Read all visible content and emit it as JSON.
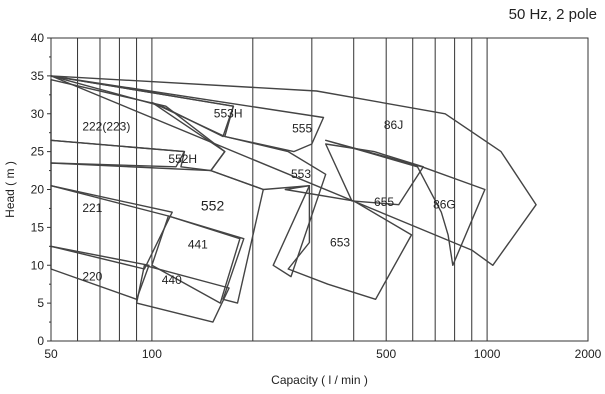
{
  "chart_data": {
    "type": "area",
    "title": "50 Hz, 2 pole",
    "xlabel": "Capacity ( l / min )",
    "ylabel": "Head ( m )",
    "x_scale": "log",
    "xlim": [
      50,
      2000
    ],
    "ylim": [
      0,
      40
    ],
    "x_ticks": [
      50,
      100,
      500,
      1000,
      2000
    ],
    "y_ticks": [
      0,
      5,
      10,
      15,
      20,
      25,
      30,
      35,
      40
    ],
    "x_gridlines": [
      60,
      70,
      80,
      90,
      100,
      200,
      300,
      400,
      500,
      600,
      700,
      800,
      900,
      1000
    ],
    "grid": true,
    "line_color": "#444444",
    "regions": [
      {
        "name": "220",
        "label_pos": [
          62,
          8
        ],
        "outline": [
          [
            50,
            12.5
          ],
          [
            98,
            10
          ],
          [
            90,
            5.5
          ],
          [
            50,
            9.5
          ]
        ]
      },
      {
        "name": "440",
        "label_pos": [
          107,
          7.5
        ],
        "outline": [
          [
            95,
            10
          ],
          [
            170,
            7
          ],
          [
            152,
            2.5
          ],
          [
            90,
            5
          ]
        ]
      },
      {
        "name": "221",
        "label_pos": [
          62,
          17
        ],
        "outline": [
          [
            50,
            20.5
          ],
          [
            115,
            17
          ],
          [
            95,
            9.5
          ],
          [
            50,
            12.5
          ]
        ]
      },
      {
        "name": "441",
        "label_pos": [
          128,
          12.2
        ],
        "outline": [
          [
            112,
            16.5
          ],
          [
            183,
            13.5
          ],
          [
            160,
            5
          ],
          [
            100,
            10
          ]
        ]
      },
      {
        "name": "552",
        "label_pos": [
          140,
          17.2
        ],
        "outline": [
          [
            50,
            23.5
          ],
          [
            150,
            22.5
          ],
          [
            215,
            20
          ],
          [
            180,
            5
          ],
          [
            163,
            5.5
          ],
          [
            188,
            13.5
          ],
          [
            112,
            16.5
          ],
          [
            50,
            20.5
          ]
        ]
      },
      {
        "name": "552H",
        "label_pos": [
          112,
          23.5
        ],
        "outline": [
          [
            50,
            26.5
          ],
          [
            125,
            25
          ],
          [
            118,
            23
          ],
          [
            50,
            23.5
          ]
        ]
      },
      {
        "name": "222(223)",
        "label_pos": [
          62,
          27.8
        ],
        "outline": [
          [
            50,
            34.5
          ],
          [
            110,
            31
          ],
          [
            165,
            25
          ],
          [
            150,
            22.5
          ],
          [
            122,
            23
          ],
          [
            125,
            25
          ],
          [
            50,
            26.5
          ]
        ]
      },
      {
        "name": "553H",
        "label_pos": [
          153,
          29.5
        ],
        "outline": [
          [
            50,
            35
          ],
          [
            175,
            31
          ],
          [
            163,
            27
          ],
          [
            107,
            31
          ]
        ]
      },
      {
        "name": "553",
        "label_pos": [
          260,
          21.5
        ],
        "outline": [
          [
            100,
            31.5
          ],
          [
            165,
            27
          ],
          [
            255,
            25
          ],
          [
            330,
            22
          ],
          [
            260,
            8.5
          ],
          [
            230,
            10
          ],
          [
            295,
            20.5
          ],
          [
            215,
            20
          ],
          [
            150,
            22.5
          ],
          [
            165,
            25
          ]
        ]
      },
      {
        "name": "555",
        "label_pos": [
          262,
          27.5
        ],
        "outline": [
          [
            50,
            35
          ],
          [
            325,
            29.5
          ],
          [
            300,
            26
          ],
          [
            265,
            25
          ],
          [
            165,
            27
          ],
          [
            175,
            31
          ]
        ]
      },
      {
        "name": "653",
        "label_pos": [
          340,
          12.5
        ],
        "outline": [
          [
            250,
            20
          ],
          [
            400,
            18.5
          ],
          [
            595,
            14
          ],
          [
            465,
            5.5
          ],
          [
            335,
            7.5
          ],
          [
            255,
            9.5
          ],
          [
            295,
            13
          ],
          [
            295,
            20.5
          ]
        ]
      },
      {
        "name": "655",
        "label_pos": [
          460,
          17.8
        ],
        "outline": [
          [
            330,
            26
          ],
          [
            460,
            25
          ],
          [
            645,
            23
          ],
          [
            545,
            18
          ],
          [
            395,
            18.5
          ]
        ]
      },
      {
        "name": "86G",
        "label_pos": [
          690,
          17.5
        ],
        "outline": [
          [
            330,
            26.5
          ],
          [
            640,
            23
          ],
          [
            985,
            20
          ],
          [
            790,
            10
          ],
          [
            765,
            14
          ],
          [
            730,
            17
          ],
          [
            620,
            23
          ]
        ]
      },
      {
        "name": "86J",
        "label_pos": [
          492,
          28
        ],
        "outline": [
          [
            50,
            35
          ],
          [
            310,
            33
          ],
          [
            750,
            30
          ],
          [
            1100,
            25
          ],
          [
            1400,
            18
          ],
          [
            1040,
            10
          ],
          [
            900,
            12
          ]
        ]
      }
    ]
  }
}
